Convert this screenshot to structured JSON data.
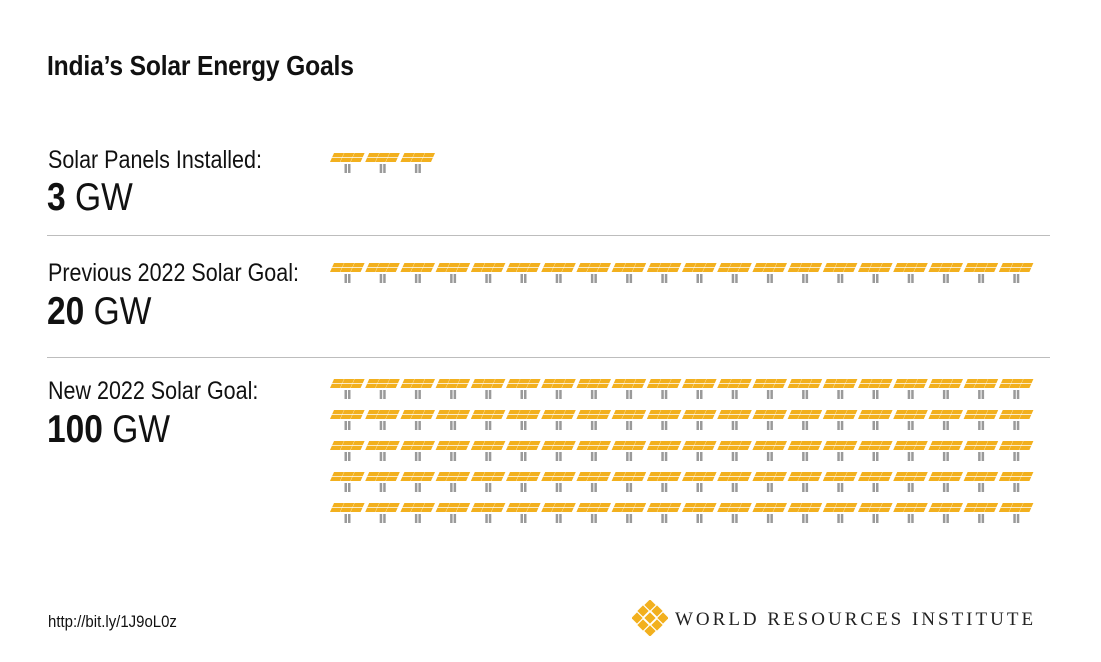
{
  "title": "India’s Solar Energy Goals",
  "chart_data": {
    "type": "pictogram",
    "icon": "solar-panel-icon",
    "panel_color": "#F2B01E",
    "post_color": "#9A9A9A",
    "rows": [
      {
        "label": "Solar Panels Installed:",
        "value": 3,
        "unit": "GW"
      },
      {
        "label": "Previous 2022 Solar Goal:",
        "value": 20,
        "unit": "GW"
      },
      {
        "label": "New 2022 Solar Goal:",
        "value": 100,
        "unit": "GW"
      }
    ]
  },
  "footer": {
    "url": "http://bit.ly/1J9oL0z",
    "brand": "WORLD RESOURCES INSTITUTE",
    "logo": "wri-logo-icon"
  }
}
